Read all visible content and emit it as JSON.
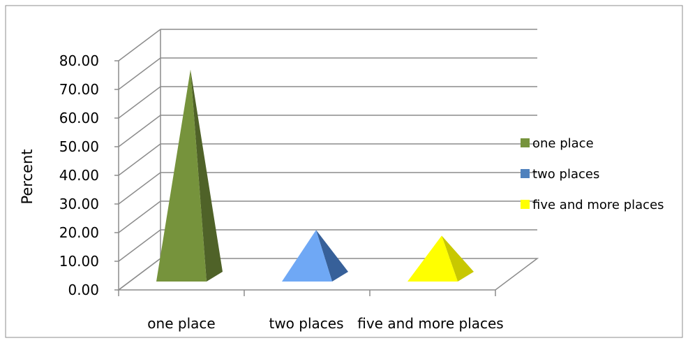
{
  "chart_data": {
    "type": "bar",
    "bar_shape": "pyramid",
    "three_d": true,
    "categories": [
      "one place",
      "two places",
      "five and more places"
    ],
    "values": [
      74.0,
      18.0,
      16.0
    ],
    "ylabel": "Percent",
    "ylim": [
      0,
      80
    ],
    "yticks": [
      "0.00",
      "10.00",
      "20.00",
      "30.00",
      "40.00",
      "50.00",
      "60.00",
      "70.00",
      "80.00"
    ],
    "grid": true,
    "legend_position": "right",
    "legend": [
      {
        "label": "one place",
        "color": "#76933C"
      },
      {
        "label": "two places",
        "color": "#4F81BD"
      },
      {
        "label": "five and more places",
        "color": "#FFFF00"
      }
    ],
    "colors": {
      "pyramid_front": [
        "#76933C",
        "#6FA8F5",
        "#FFFF00"
      ],
      "pyramid_side": [
        "#4F6228",
        "#376099",
        "#C8C800"
      ],
      "gridline": "#8C8C8C",
      "axis": "#8C8C8C"
    }
  }
}
